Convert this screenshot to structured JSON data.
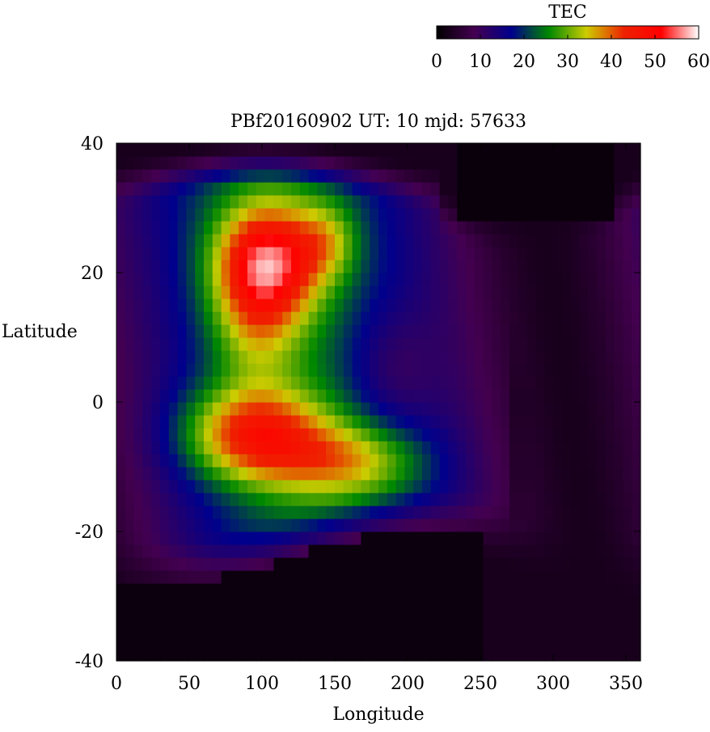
{
  "chart_data": {
    "type": "heatmap",
    "title": "PBf20160902  UT: 10  mjd: 57633",
    "xlabel": "Longitude",
    "ylabel": "Latitude",
    "xlim": [
      0,
      360
    ],
    "ylim": [
      -40,
      40
    ],
    "x_ticks": [
      "0",
      "50",
      "100",
      "150",
      "200",
      "250",
      "300",
      "350"
    ],
    "y_ticks": [
      "40",
      "20",
      "0",
      "-20",
      "-40"
    ],
    "colorbar": {
      "label": "TEC",
      "range": [
        0,
        60
      ],
      "ticks": [
        "0",
        "10",
        "20",
        "30",
        "40",
        "50",
        "60"
      ],
      "colors": [
        "#000000",
        "#440050",
        "#00008c",
        "#008800",
        "#cccc00",
        "#ee2200",
        "#ff0000",
        "#ffffff"
      ]
    },
    "features": [
      {
        "lon": 105,
        "lat": 22,
        "sigma_lon": 26,
        "sigma_lat": 6,
        "amp": 27
      },
      {
        "lon": 95,
        "lat": 14,
        "sigma_lon": 22,
        "sigma_lat": 8,
        "amp": 14
      },
      {
        "lon": 90,
        "lat": -5,
        "sigma_lon": 35,
        "sigma_lat": 5,
        "amp": 26
      },
      {
        "lon": 160,
        "lat": -9,
        "sigma_lon": 40,
        "sigma_lat": 4,
        "amp": 15
      },
      {
        "lon": 145,
        "lat": 25,
        "sigma_lon": 15,
        "sigma_lat": 4,
        "amp": 10
      },
      {
        "lon": 190,
        "lat": 5,
        "sigma_lon": 22,
        "sigma_lat": 7,
        "amp": -8
      }
    ]
  }
}
